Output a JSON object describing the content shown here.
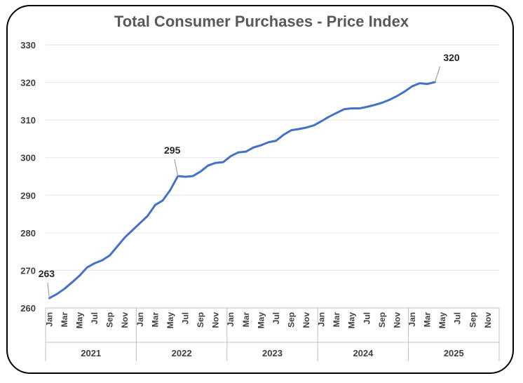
{
  "chart_data": {
    "type": "line",
    "title": "Total Consumer Purchases - Price Index",
    "xlabel": "",
    "ylabel": "",
    "ylim": [
      260,
      330
    ],
    "yticks": [
      260,
      270,
      280,
      290,
      300,
      310,
      320,
      330
    ],
    "grid": true,
    "legend": "none",
    "line_color": "#4472C4",
    "month_ticks": [
      "Jan",
      "Mar",
      "May",
      "Jul",
      "Sep",
      "Nov"
    ],
    "years": [
      "2021",
      "2022",
      "2023",
      "2024",
      "2025"
    ],
    "x": [
      "2021-01",
      "2021-02",
      "2021-03",
      "2021-04",
      "2021-05",
      "2021-06",
      "2021-07",
      "2021-08",
      "2021-09",
      "2021-10",
      "2021-11",
      "2021-12",
      "2022-01",
      "2022-02",
      "2022-03",
      "2022-04",
      "2022-05",
      "2022-06",
      "2022-07",
      "2022-08",
      "2022-09",
      "2022-10",
      "2022-11",
      "2022-12",
      "2023-01",
      "2023-02",
      "2023-03",
      "2023-04",
      "2023-05",
      "2023-06",
      "2023-07",
      "2023-08",
      "2023-09",
      "2023-10",
      "2023-11",
      "2023-12",
      "2024-01",
      "2024-02",
      "2024-03",
      "2024-04",
      "2024-05",
      "2024-06",
      "2024-07",
      "2024-08",
      "2024-09",
      "2024-10",
      "2024-11",
      "2024-12",
      "2025-01",
      "2025-02",
      "2025-03",
      "2025-04"
    ],
    "values": [
      262.6,
      263.7,
      265.1,
      266.8,
      268.6,
      270.8,
      271.9,
      272.7,
      274.0,
      276.4,
      278.8,
      280.7,
      282.6,
      284.5,
      287.4,
      288.6,
      291.4,
      295.1,
      294.9,
      295.1,
      296.3,
      297.9,
      298.6,
      298.8,
      300.4,
      301.4,
      301.6,
      302.7,
      303.3,
      304.1,
      304.5,
      306.1,
      307.3,
      307.6,
      308.0,
      308.6,
      309.7,
      310.9,
      311.9,
      312.9,
      313.1,
      313.1,
      313.5,
      314.0,
      314.6,
      315.4,
      316.4,
      317.6,
      319.0,
      319.8,
      319.6,
      320.1
    ],
    "annotations": [
      {
        "x": "2021-01",
        "label": "263"
      },
      {
        "x": "2022-06",
        "label": "295"
      },
      {
        "x": "2025-04",
        "label": "320"
      }
    ]
  }
}
